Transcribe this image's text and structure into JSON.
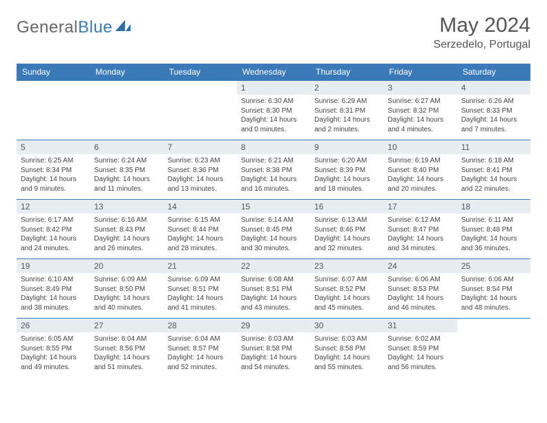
{
  "brand": {
    "part1": "General",
    "part2": "Blue"
  },
  "title": "May 2024",
  "location": "Serzedelo, Portugal",
  "colors": {
    "header_bg": "#3a7ab8",
    "daynum_bg": "#e8edf1",
    "text": "#444444",
    "title_color": "#555555"
  },
  "weekdays": [
    "Sunday",
    "Monday",
    "Tuesday",
    "Wednesday",
    "Thursday",
    "Friday",
    "Saturday"
  ],
  "weeks": [
    [
      {
        "n": "",
        "sr": "",
        "ss": "",
        "dl": ""
      },
      {
        "n": "",
        "sr": "",
        "ss": "",
        "dl": ""
      },
      {
        "n": "",
        "sr": "",
        "ss": "",
        "dl": ""
      },
      {
        "n": "1",
        "sr": "Sunrise: 6:30 AM",
        "ss": "Sunset: 8:30 PM",
        "dl": "Daylight: 14 hours and 0 minutes."
      },
      {
        "n": "2",
        "sr": "Sunrise: 6:29 AM",
        "ss": "Sunset: 8:31 PM",
        "dl": "Daylight: 14 hours and 2 minutes."
      },
      {
        "n": "3",
        "sr": "Sunrise: 6:27 AM",
        "ss": "Sunset: 8:32 PM",
        "dl": "Daylight: 14 hours and 4 minutes."
      },
      {
        "n": "4",
        "sr": "Sunrise: 6:26 AM",
        "ss": "Sunset: 8:33 PM",
        "dl": "Daylight: 14 hours and 7 minutes."
      }
    ],
    [
      {
        "n": "5",
        "sr": "Sunrise: 6:25 AM",
        "ss": "Sunset: 8:34 PM",
        "dl": "Daylight: 14 hours and 9 minutes."
      },
      {
        "n": "6",
        "sr": "Sunrise: 6:24 AM",
        "ss": "Sunset: 8:35 PM",
        "dl": "Daylight: 14 hours and 11 minutes."
      },
      {
        "n": "7",
        "sr": "Sunrise: 6:23 AM",
        "ss": "Sunset: 8:36 PM",
        "dl": "Daylight: 14 hours and 13 minutes."
      },
      {
        "n": "8",
        "sr": "Sunrise: 6:21 AM",
        "ss": "Sunset: 8:38 PM",
        "dl": "Daylight: 14 hours and 16 minutes."
      },
      {
        "n": "9",
        "sr": "Sunrise: 6:20 AM",
        "ss": "Sunset: 8:39 PM",
        "dl": "Daylight: 14 hours and 18 minutes."
      },
      {
        "n": "10",
        "sr": "Sunrise: 6:19 AM",
        "ss": "Sunset: 8:40 PM",
        "dl": "Daylight: 14 hours and 20 minutes."
      },
      {
        "n": "11",
        "sr": "Sunrise: 6:18 AM",
        "ss": "Sunset: 8:41 PM",
        "dl": "Daylight: 14 hours and 22 minutes."
      }
    ],
    [
      {
        "n": "12",
        "sr": "Sunrise: 6:17 AM",
        "ss": "Sunset: 8:42 PM",
        "dl": "Daylight: 14 hours and 24 minutes."
      },
      {
        "n": "13",
        "sr": "Sunrise: 6:16 AM",
        "ss": "Sunset: 8:43 PM",
        "dl": "Daylight: 14 hours and 26 minutes."
      },
      {
        "n": "14",
        "sr": "Sunrise: 6:15 AM",
        "ss": "Sunset: 8:44 PM",
        "dl": "Daylight: 14 hours and 28 minutes."
      },
      {
        "n": "15",
        "sr": "Sunrise: 6:14 AM",
        "ss": "Sunset: 8:45 PM",
        "dl": "Daylight: 14 hours and 30 minutes."
      },
      {
        "n": "16",
        "sr": "Sunrise: 6:13 AM",
        "ss": "Sunset: 8:46 PM",
        "dl": "Daylight: 14 hours and 32 minutes."
      },
      {
        "n": "17",
        "sr": "Sunrise: 6:12 AM",
        "ss": "Sunset: 8:47 PM",
        "dl": "Daylight: 14 hours and 34 minutes."
      },
      {
        "n": "18",
        "sr": "Sunrise: 6:11 AM",
        "ss": "Sunset: 8:48 PM",
        "dl": "Daylight: 14 hours and 36 minutes."
      }
    ],
    [
      {
        "n": "19",
        "sr": "Sunrise: 6:10 AM",
        "ss": "Sunset: 8:49 PM",
        "dl": "Daylight: 14 hours and 38 minutes."
      },
      {
        "n": "20",
        "sr": "Sunrise: 6:09 AM",
        "ss": "Sunset: 8:50 PM",
        "dl": "Daylight: 14 hours and 40 minutes."
      },
      {
        "n": "21",
        "sr": "Sunrise: 6:09 AM",
        "ss": "Sunset: 8:51 PM",
        "dl": "Daylight: 14 hours and 41 minutes."
      },
      {
        "n": "22",
        "sr": "Sunrise: 6:08 AM",
        "ss": "Sunset: 8:51 PM",
        "dl": "Daylight: 14 hours and 43 minutes."
      },
      {
        "n": "23",
        "sr": "Sunrise: 6:07 AM",
        "ss": "Sunset: 8:52 PM",
        "dl": "Daylight: 14 hours and 45 minutes."
      },
      {
        "n": "24",
        "sr": "Sunrise: 6:06 AM",
        "ss": "Sunset: 8:53 PM",
        "dl": "Daylight: 14 hours and 46 minutes."
      },
      {
        "n": "25",
        "sr": "Sunrise: 6:06 AM",
        "ss": "Sunset: 8:54 PM",
        "dl": "Daylight: 14 hours and 48 minutes."
      }
    ],
    [
      {
        "n": "26",
        "sr": "Sunrise: 6:05 AM",
        "ss": "Sunset: 8:55 PM",
        "dl": "Daylight: 14 hours and 49 minutes."
      },
      {
        "n": "27",
        "sr": "Sunrise: 6:04 AM",
        "ss": "Sunset: 8:56 PM",
        "dl": "Daylight: 14 hours and 51 minutes."
      },
      {
        "n": "28",
        "sr": "Sunrise: 6:04 AM",
        "ss": "Sunset: 8:57 PM",
        "dl": "Daylight: 14 hours and 52 minutes."
      },
      {
        "n": "29",
        "sr": "Sunrise: 6:03 AM",
        "ss": "Sunset: 8:58 PM",
        "dl": "Daylight: 14 hours and 54 minutes."
      },
      {
        "n": "30",
        "sr": "Sunrise: 6:03 AM",
        "ss": "Sunset: 8:58 PM",
        "dl": "Daylight: 14 hours and 55 minutes."
      },
      {
        "n": "31",
        "sr": "Sunrise: 6:02 AM",
        "ss": "Sunset: 8:59 PM",
        "dl": "Daylight: 14 hours and 56 minutes."
      },
      {
        "n": "",
        "sr": "",
        "ss": "",
        "dl": ""
      }
    ]
  ]
}
